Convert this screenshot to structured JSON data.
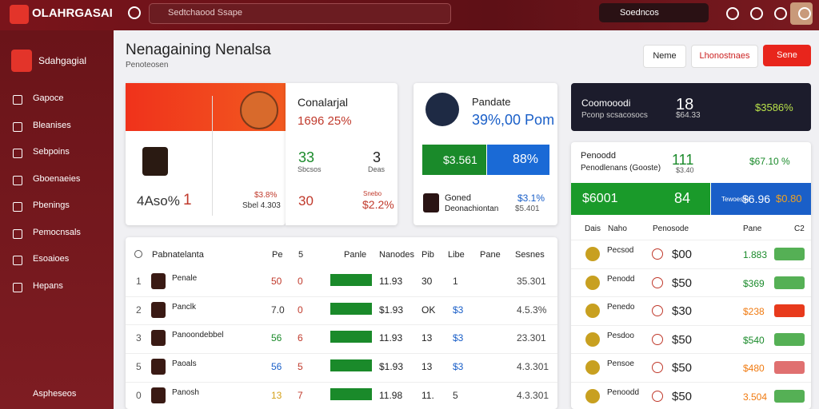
{
  "header": {
    "logo_title": "OLAHRGASAI",
    "search_placeholder": "Sedtchaood Ssape",
    "right_search": "Soedncos"
  },
  "sidebar": {
    "brand": "Sdahgagial",
    "items": [
      "Gapoce",
      "Bleanises",
      "Sebpoins",
      "Gboenaeies",
      "Pbenings",
      "Pemocnsals",
      "Esoaioes",
      "Hepans"
    ],
    "footer": "Aspheseos"
  },
  "main": {
    "title": "Nenagaining Nenalsa",
    "subtitle": "Penoteosen",
    "buttons": [
      "Neme",
      "Lhonostnaes",
      "Sene"
    ]
  },
  "card1": {
    "name": "Conalarjal",
    "score": "1696 25%",
    "left_big": "33",
    "right_big": "3",
    "left_label": "Sbcsos",
    "right_label": "Deas",
    "bottom_left": "4Aso%",
    "bottom_one": "1",
    "mid_top": "$3.8%",
    "mid_bottom": "Sbel 4.303",
    "bottom_mid": "30",
    "bottom_right_top": "Snebo",
    "bottom_right": "$2.2%"
  },
  "card2": {
    "name": "Pandate",
    "score": "39%,00 Pom",
    "green_value": "$3.561",
    "blue_value": "88%",
    "row_title": "Goned",
    "row_sub": "Deonachiontan",
    "row_value": "$3.1%",
    "row_value2": "$5.401"
  },
  "card3": {
    "title": "Coomooodi",
    "sub": "Pconp scsacosocs",
    "big": "18",
    "small": "$64.33",
    "right": "$3586%"
  },
  "card4": {
    "title": "Penoodd",
    "sub": "Penodlenans (Gooste)",
    "big": "111",
    "small": "$3.40",
    "right": "$67.10 %",
    "green_value": "$6001",
    "green_big": "84",
    "blue_label": "Tewoesoe",
    "blue_value": "$6.96",
    "blue_value2": "$0.80"
  },
  "table": {
    "headers": [
      "Pabnatelanta",
      "Pe",
      "5",
      "Panle",
      "Nanodes",
      "Pib",
      "Libe",
      "Pane",
      "Sesnes"
    ],
    "rows": [
      [
        "1",
        "Penale",
        "50",
        "0",
        "11.93",
        "30",
        "1",
        "35.301"
      ],
      [
        "2",
        "Panclk",
        "7.0",
        "0",
        "$1.93",
        "OK",
        "$3",
        "4.5.3%"
      ],
      [
        "3",
        "Panoondebbel",
        "56",
        "6",
        "11.93",
        "13",
        "$3",
        "23.301"
      ],
      [
        "5",
        "Paoals",
        "56",
        "5",
        "$1.93",
        "13",
        "$3",
        "4.3.301"
      ],
      [
        "0",
        "Panosh",
        "13",
        "7",
        "11.98",
        "11.",
        "5",
        "4.3.301"
      ]
    ]
  },
  "side_table": {
    "headers": [
      "Dais",
      "Naho",
      "Penosode",
      "Pane",
      "C2"
    ],
    "rows": [
      [
        "Pecsod",
        "$00",
        "1.883"
      ],
      [
        "Penodd",
        "$50",
        "$369"
      ],
      [
        "Penedo",
        "$30",
        "$238"
      ],
      [
        "Pesdoo",
        "$50",
        "$540"
      ],
      [
        "Pensoe",
        "$50",
        "$480"
      ],
      [
        "Penoodd",
        "$50",
        "3.504"
      ]
    ]
  }
}
